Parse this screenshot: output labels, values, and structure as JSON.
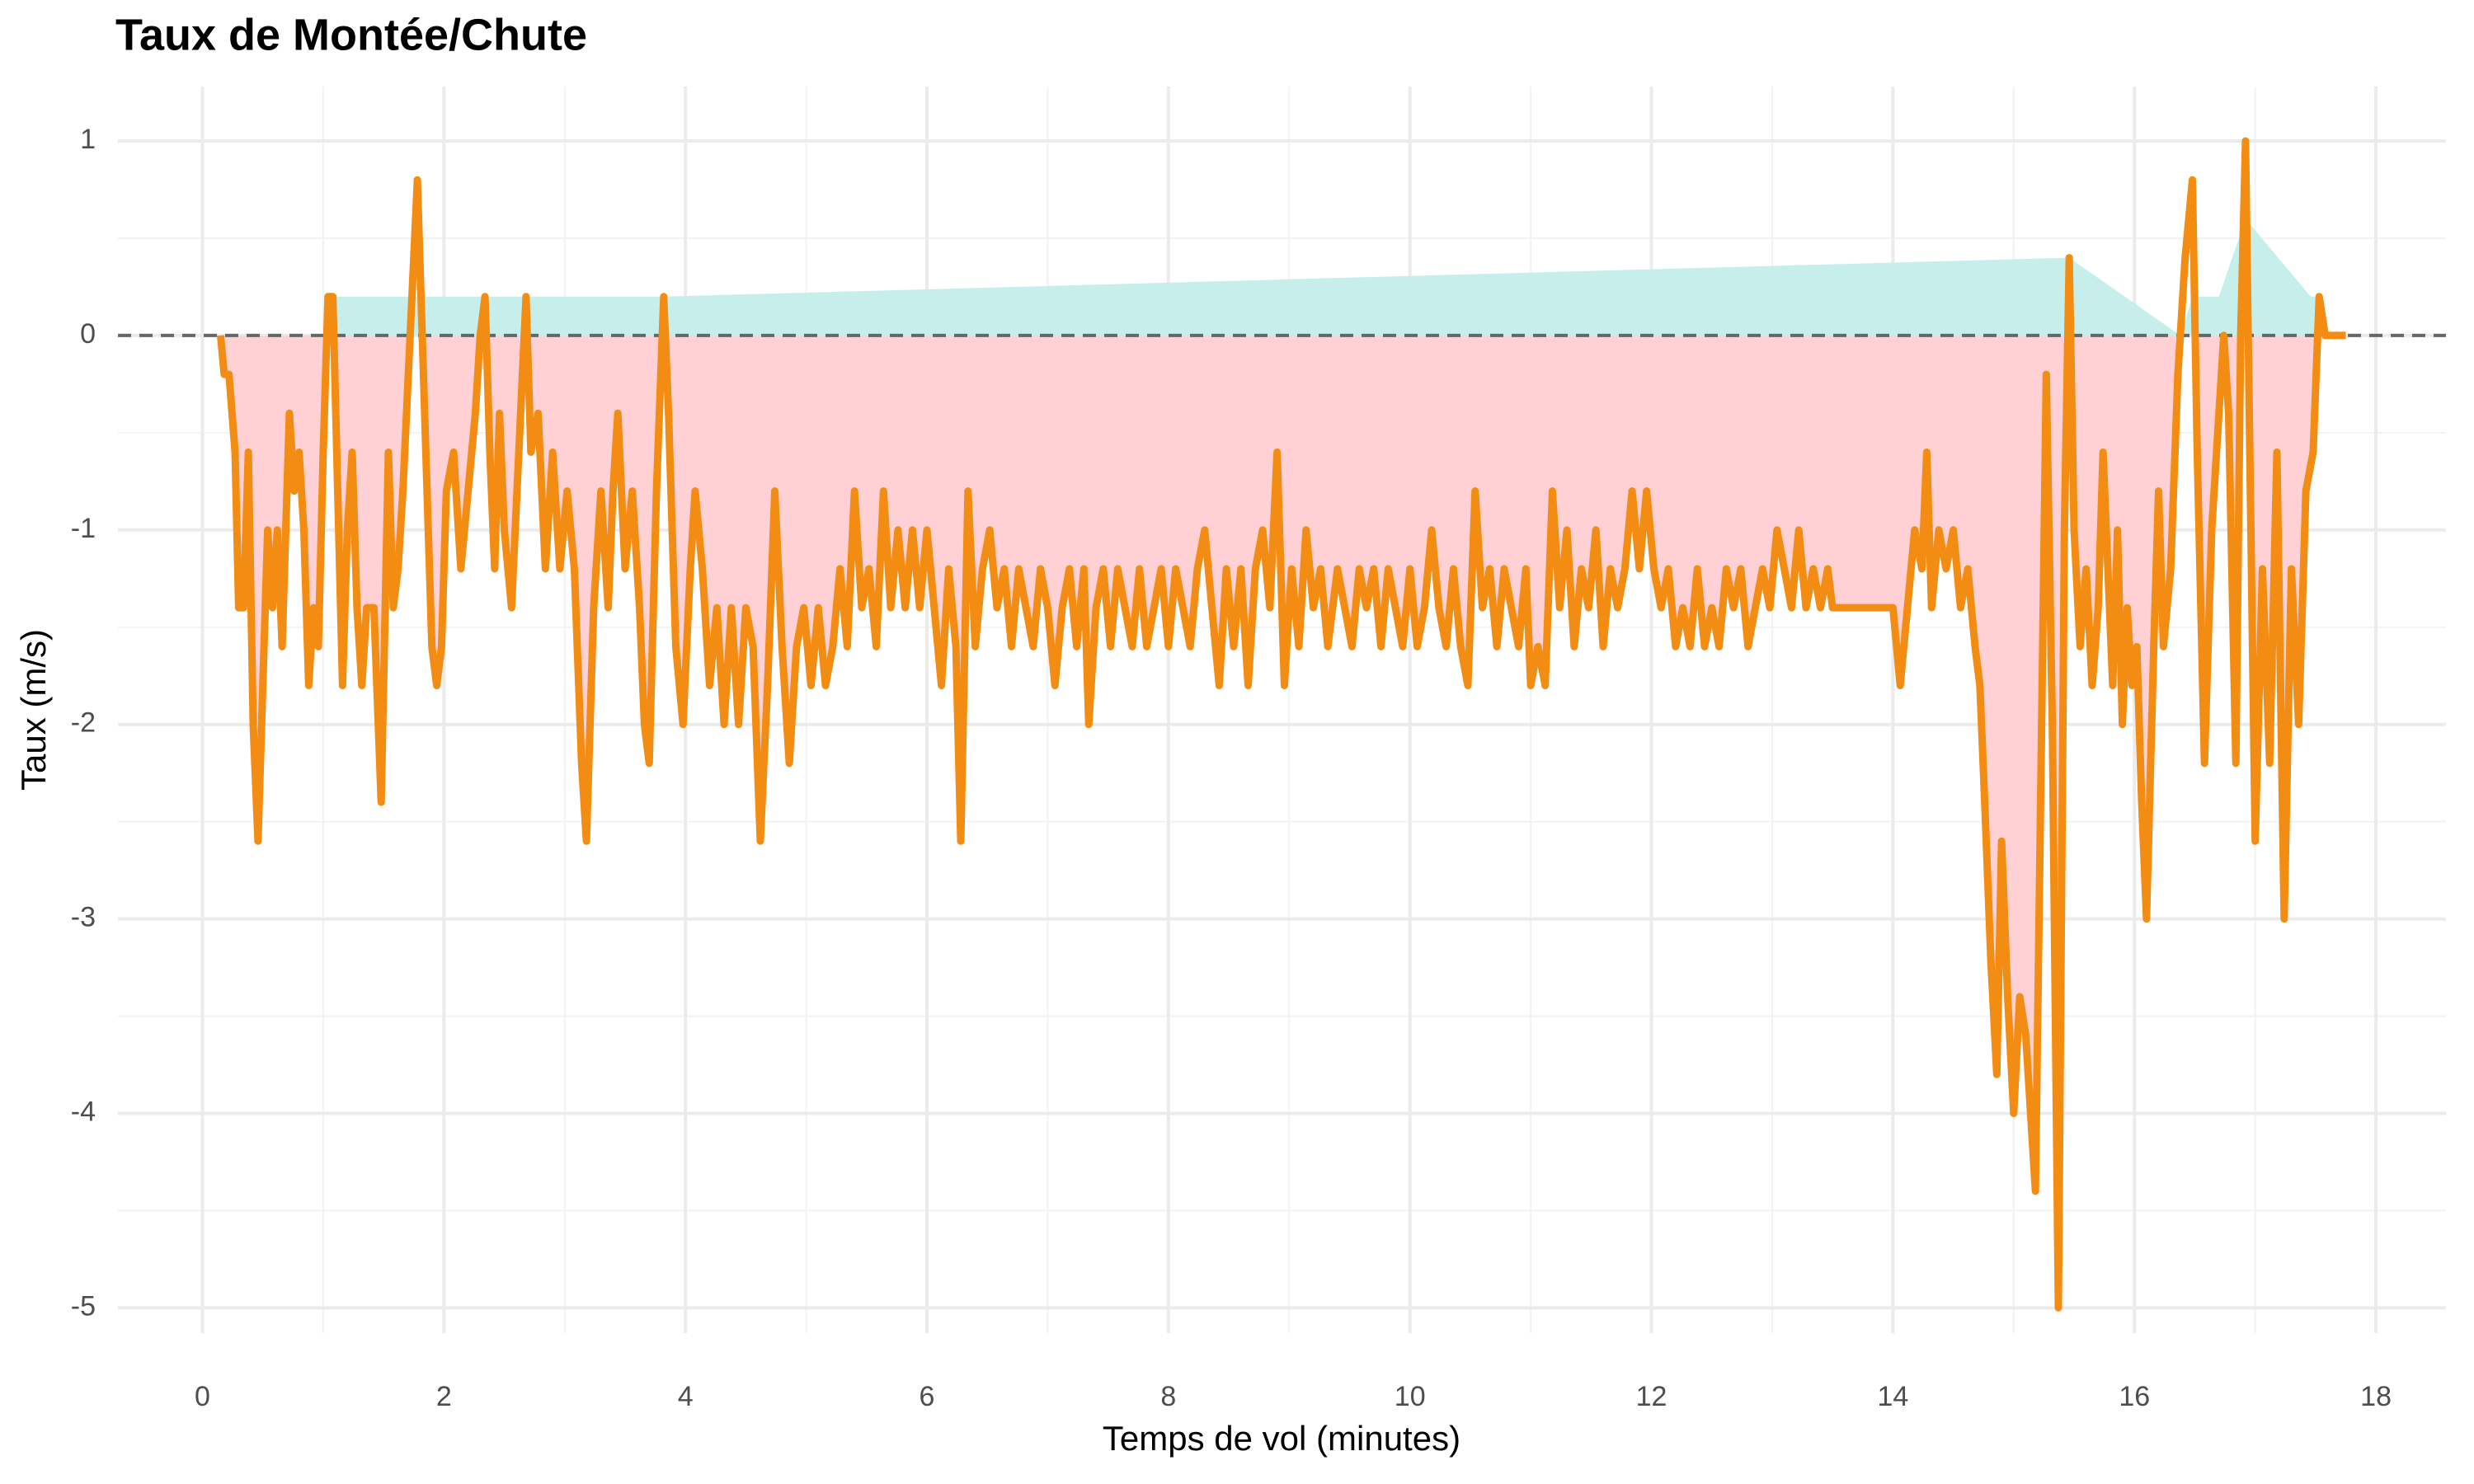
{
  "chart_data": {
    "type": "line",
    "title": "Taux de Montée/Chute",
    "x_label": "Temps de vol (minutes)",
    "y_label": "Taux (m/s)",
    "xlim": [
      -0.7,
      18.58
    ],
    "ylim": [
      1.28,
      -5.13
    ],
    "xticks": [
      0,
      2,
      4,
      6,
      8,
      10,
      12,
      14,
      16,
      18
    ],
    "yticks": [
      1,
      0,
      -1,
      -2,
      -3,
      -4,
      -5
    ],
    "grid": true,
    "minor_grid": true,
    "hline": 0,
    "negative_fill": "#ffd1d4",
    "x": [
      0.15,
      0.18,
      0.22,
      0.27,
      0.3,
      0.34,
      0.38,
      0.42,
      0.46,
      0.5,
      0.54,
      0.58,
      0.62,
      0.66,
      0.7,
      0.72,
      0.76,
      0.8,
      0.84,
      0.88,
      0.92,
      0.96,
      1.0,
      1.04,
      1.08,
      1.12,
      1.16,
      1.2,
      1.24,
      1.28,
      1.32,
      1.36,
      1.42,
      1.48,
      1.54,
      1.58,
      1.62,
      1.66,
      1.72,
      1.78,
      1.84,
      1.9,
      1.94,
      1.98,
      2.02,
      2.08,
      2.14,
      2.2,
      2.26,
      2.3,
      2.34,
      2.38,
      2.42,
      2.46,
      2.5,
      2.56,
      2.62,
      2.68,
      2.72,
      2.78,
      2.84,
      2.9,
      2.96,
      3.02,
      3.08,
      3.14,
      3.18,
      3.24,
      3.3,
      3.36,
      3.4,
      3.44,
      3.5,
      3.56,
      3.62,
      3.66,
      3.7,
      3.76,
      3.82,
      3.86,
      3.92,
      3.98,
      4.04,
      4.08,
      4.14,
      4.2,
      4.26,
      4.32,
      4.38,
      4.44,
      4.5,
      4.56,
      4.62,
      4.68,
      4.74,
      4.8,
      4.86,
      4.92,
      4.98,
      5.04,
      5.1,
      5.16,
      5.22,
      5.28,
      5.34,
      5.4,
      5.46,
      5.52,
      5.58,
      5.64,
      5.7,
      5.76,
      5.82,
      5.88,
      5.94,
      6.0,
      6.06,
      6.12,
      6.18,
      6.24,
      6.28,
      6.34,
      6.4,
      6.46,
      6.52,
      6.58,
      6.64,
      6.7,
      6.76,
      6.82,
      6.88,
      6.94,
      7.0,
      7.06,
      7.12,
      7.18,
      7.24,
      7.3,
      7.34,
      7.4,
      7.46,
      7.52,
      7.58,
      7.64,
      7.7,
      7.76,
      7.82,
      7.88,
      7.94,
      8.0,
      8.06,
      8.12,
      8.18,
      8.24,
      8.3,
      8.36,
      8.42,
      8.48,
      8.54,
      8.6,
      8.66,
      8.72,
      8.78,
      8.84,
      8.9,
      8.96,
      9.02,
      9.08,
      9.14,
      9.2,
      9.26,
      9.32,
      9.4,
      9.46,
      9.52,
      9.58,
      9.64,
      9.7,
      9.76,
      9.82,
      9.88,
      9.94,
      10.0,
      10.06,
      10.12,
      10.18,
      10.24,
      10.3,
      10.36,
      10.42,
      10.48,
      10.54,
      10.6,
      10.66,
      10.72,
      10.78,
      10.84,
      10.9,
      10.96,
      11.0,
      11.06,
      11.12,
      11.18,
      11.24,
      11.3,
      11.36,
      11.42,
      11.48,
      11.54,
      11.6,
      11.66,
      11.72,
      11.78,
      11.84,
      11.9,
      11.96,
      12.02,
      12.08,
      12.14,
      12.2,
      12.26,
      12.32,
      12.38,
      12.44,
      12.5,
      12.56,
      12.62,
      12.68,
      12.74,
      12.8,
      12.86,
      12.92,
      12.98,
      13.04,
      13.1,
      13.16,
      13.22,
      13.28,
      13.34,
      13.4,
      13.46,
      13.5,
      13.6,
      13.7,
      13.8,
      13.9,
      14.0,
      14.06,
      14.12,
      14.18,
      14.24,
      14.28,
      14.32,
      14.38,
      14.44,
      14.5,
      14.56,
      14.62,
      14.68,
      14.72,
      14.76,
      14.81,
      14.86,
      14.9,
      14.95,
      15.0,
      15.05,
      15.1,
      15.18,
      15.27,
      15.32,
      15.37,
      15.42,
      15.46,
      15.5,
      15.55,
      15.6,
      15.65,
      15.7,
      15.74,
      15.78,
      15.82,
      15.86,
      15.9,
      15.94,
      15.98,
      16.02,
      16.06,
      16.1,
      16.16,
      16.2,
      16.24,
      16.3,
      16.36,
      16.42,
      16.48,
      16.52,
      16.58,
      16.64,
      16.7,
      16.74,
      16.78,
      16.84,
      16.88,
      16.92,
      16.96,
      17.0,
      17.06,
      17.12,
      17.18,
      17.24,
      17.3,
      17.36,
      17.42,
      17.48,
      17.53,
      17.58,
      17.75
    ],
    "series": [
      {
        "color": "#f28c12",
        "values": [
          0,
          -0.2,
          -0.2,
          -0.6,
          -1.4,
          -1.4,
          -0.6,
          -2,
          -2.6,
          -1.8,
          -1,
          -1.4,
          -1,
          -1.6,
          -0.8,
          -0.4,
          -0.8,
          -0.6,
          -1,
          -1.8,
          -1.4,
          -1.6,
          -0.6,
          0.2,
          0.2,
          -0.8,
          -1.8,
          -1,
          -0.6,
          -1.4,
          -1.8,
          -1.4,
          -1.4,
          -2.4,
          -0.6,
          -1.4,
          -1.2,
          -0.8,
          0,
          0.8,
          -0.4,
          -1.6,
          -1.8,
          -1.6,
          -0.8,
          -0.6,
          -1.2,
          -0.8,
          -0.4,
          0,
          0.2,
          -0.6,
          -1.2,
          -0.4,
          -1,
          -1.4,
          -0.6,
          0.2,
          -0.6,
          -0.4,
          -1.2,
          -0.6,
          -1.2,
          -0.8,
          -1.2,
          -2.2,
          -2.6,
          -1.4,
          -0.8,
          -1.4,
          -0.8,
          -0.4,
          -1.2,
          -0.8,
          -1.4,
          -2,
          -2.2,
          -0.8,
          0.2,
          -0.4,
          -1.6,
          -2,
          -1.2,
          -0.8,
          -1.2,
          -1.8,
          -1.4,
          -2,
          -1.4,
          -2,
          -1.4,
          -1.6,
          -2.6,
          -1.8,
          -0.8,
          -1.6,
          -2.2,
          -1.6,
          -1.4,
          -1.8,
          -1.4,
          -1.8,
          -1.6,
          -1.2,
          -1.6,
          -0.8,
          -1.4,
          -1.2,
          -1.6,
          -0.8,
          -1.4,
          -1,
          -1.4,
          -1,
          -1.4,
          -1,
          -1.4,
          -1.8,
          -1.2,
          -1.6,
          -2.6,
          -0.8,
          -1.6,
          -1.2,
          -1,
          -1.4,
          -1.2,
          -1.6,
          -1.2,
          -1.4,
          -1.6,
          -1.2,
          -1.4,
          -1.8,
          -1.4,
          -1.2,
          -1.6,
          -1.2,
          -2,
          -1.4,
          -1.2,
          -1.6,
          -1.2,
          -1.4,
          -1.6,
          -1.2,
          -1.6,
          -1.4,
          -1.2,
          -1.6,
          -1.2,
          -1.4,
          -1.6,
          -1.2,
          -1,
          -1.4,
          -1.8,
          -1.2,
          -1.6,
          -1.2,
          -1.8,
          -1.2,
          -1,
          -1.4,
          -0.6,
          -1.8,
          -1.2,
          -1.6,
          -1,
          -1.4,
          -1.2,
          -1.6,
          -1.2,
          -1.4,
          -1.6,
          -1.2,
          -1.4,
          -1.2,
          -1.6,
          -1.2,
          -1.4,
          -1.6,
          -1.2,
          -1.6,
          -1.4,
          -1,
          -1.4,
          -1.6,
          -1.2,
          -1.6,
          -1.8,
          -0.8,
          -1.4,
          -1.2,
          -1.6,
          -1.2,
          -1.4,
          -1.6,
          -1.2,
          -1.8,
          -1.6,
          -1.8,
          -0.8,
          -1.4,
          -1,
          -1.6,
          -1.2,
          -1.4,
          -1,
          -1.6,
          -1.2,
          -1.4,
          -1.2,
          -0.8,
          -1.2,
          -0.8,
          -1.2,
          -1.4,
          -1.2,
          -1.6,
          -1.4,
          -1.6,
          -1.2,
          -1.6,
          -1.4,
          -1.6,
          -1.2,
          -1.4,
          -1.2,
          -1.6,
          -1.4,
          -1.2,
          -1.4,
          -1,
          -1.2,
          -1.4,
          -1,
          -1.4,
          -1.2,
          -1.4,
          -1.2,
          -1.4,
          -1.4,
          -1.4,
          -1.4,
          -1.4,
          -1.4,
          -1.8,
          -1.4,
          -1,
          -1.2,
          -0.6,
          -1.4,
          -1,
          -1.2,
          -1,
          -1.4,
          -1.2,
          -1.6,
          -1.8,
          -2.4,
          -3.2,
          -3.8,
          -2.6,
          -3.4,
          -4,
          -3.4,
          -3.6,
          -4.4,
          -0.2,
          -2,
          -5,
          -1,
          0.4,
          -1,
          -1.6,
          -1.2,
          -1.8,
          -1.4,
          -0.6,
          -1.2,
          -1.8,
          -1,
          -2,
          -1.4,
          -1.8,
          -1.6,
          -2.4,
          -3,
          -1.6,
          -0.8,
          -1.6,
          -1.2,
          -0.2,
          0.4,
          0.8,
          -0.6,
          -2.2,
          -1,
          -0.4,
          0,
          -0.4,
          -2.2,
          0,
          1,
          -0.8,
          -2.6,
          -1.2,
          -2.2,
          -0.6,
          -3,
          -1.2,
          -2,
          -0.8,
          -0.6,
          0.2,
          0,
          0
        ]
      }
    ],
    "areas": [
      {
        "color": "#c6efec",
        "x": [
          1.05,
          3.82,
          15.46,
          16.38,
          16.48,
          16.7,
          16.92,
          17.46,
          17.53
        ],
        "values": [
          0.2,
          0.2,
          0.4,
          0,
          0.2,
          0.2,
          0.6,
          0.2,
          0.2
        ]
      }
    ]
  }
}
